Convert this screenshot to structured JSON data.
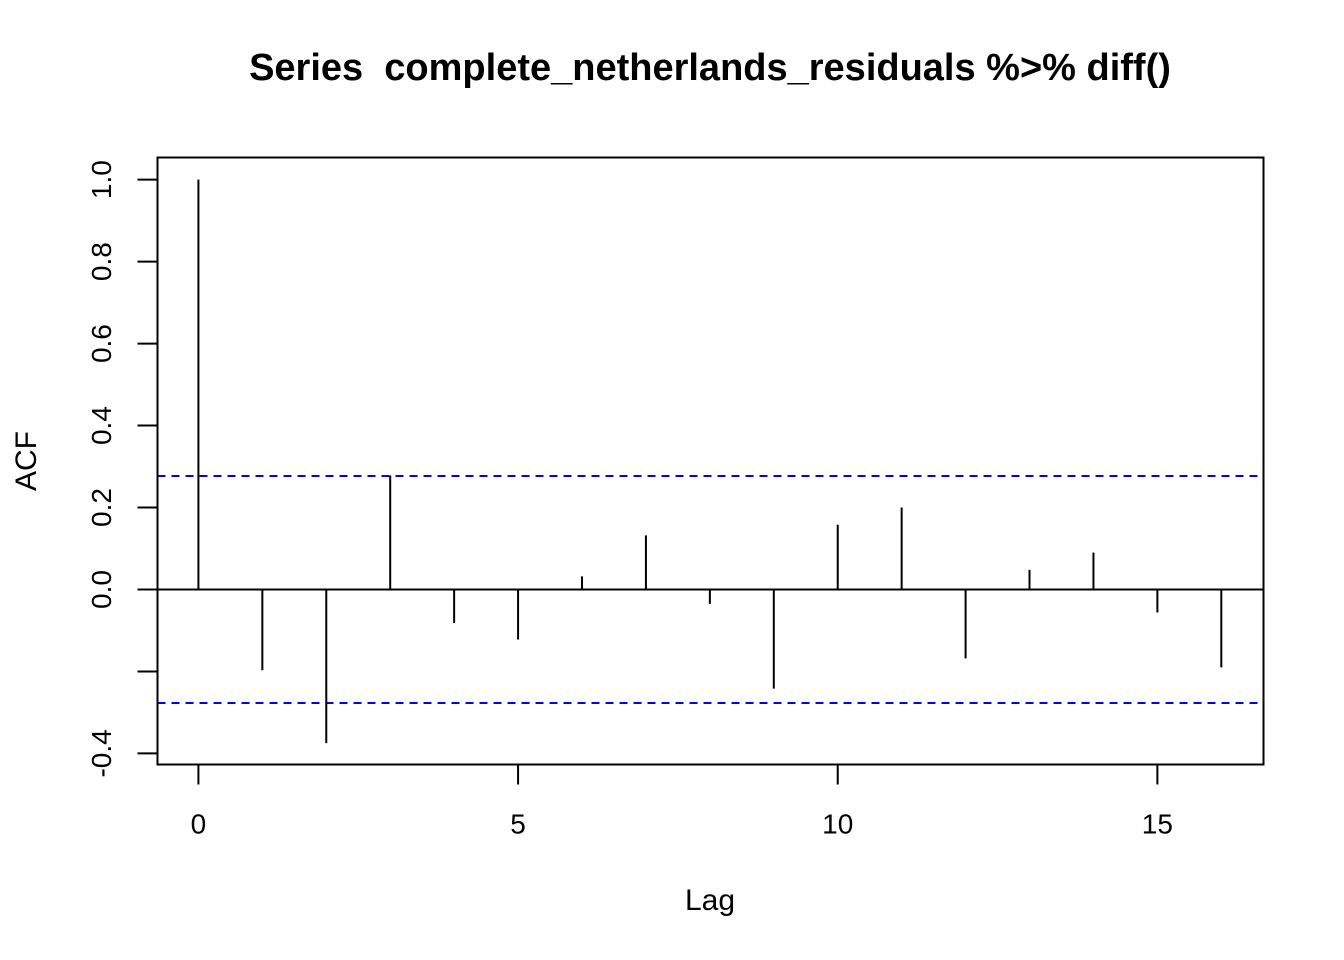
{
  "chart_data": {
    "type": "bar",
    "title": "Series  complete_netherlands_residuals %>% diff()",
    "xlabel": "Lag",
    "ylabel": "ACF",
    "x": [
      0,
      1,
      2,
      3,
      4,
      5,
      6,
      7,
      8,
      9,
      10,
      11,
      12,
      13,
      14,
      15,
      16
    ],
    "values": [
      1.0,
      -0.197,
      -0.375,
      0.278,
      -0.082,
      -0.122,
      0.032,
      0.132,
      -0.035,
      -0.242,
      0.158,
      0.2,
      -0.168,
      0.048,
      0.09,
      -0.056,
      -0.19
    ],
    "confidence_bounds": [
      0.277,
      -0.277
    ],
    "confidence_color": "#0000ff",
    "xticks": [
      0,
      5,
      10,
      15
    ],
    "yticks": [
      -0.4,
      0.0,
      0.2,
      0.4,
      0.6,
      0.8,
      1.0
    ],
    "ytick_labels": [
      "-0.4",
      "0.0",
      "0.2",
      "0.4",
      "0.6",
      "0.8",
      "1.0"
    ],
    "xlim": [
      -0.64,
      16.66
    ],
    "ylim": [
      -0.427,
      1.054
    ],
    "grid": false,
    "legend": "none"
  }
}
